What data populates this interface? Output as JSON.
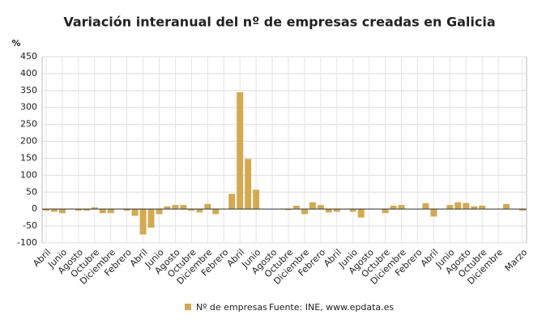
{
  "chart_data": {
    "type": "bar",
    "title": "Variación interanual del nº de empresas creadas en Galicia",
    "y_label": "%",
    "source": "Fuente: INE, www.epdata.es",
    "categories": [
      "Abril",
      null,
      "Junio",
      null,
      "Agosto",
      null,
      "Octubre",
      null,
      "Diciembre",
      null,
      "Febrero",
      null,
      "Abril",
      null,
      "Junio",
      null,
      "Agosto",
      null,
      "Octubre",
      null,
      "Diciembre",
      null,
      "Febrero",
      null,
      "Abril",
      null,
      "Junio",
      null,
      "Agosto",
      null,
      "Octubre",
      null,
      "Diciembre",
      null,
      "Febrero",
      null,
      "Abril",
      null,
      "Junio",
      null,
      "Agosto",
      null,
      "Octubre",
      null,
      "Diciembre",
      null,
      "Febrero",
      null,
      "Abril",
      null,
      "Junio",
      null,
      "Agosto",
      null,
      "Octubre",
      null,
      "Diciembre",
      null,
      null,
      "Marzo"
    ],
    "series": [
      {
        "name": "Nº de empresas",
        "color": "#d4a94f",
        "values": [
          -5,
          -8,
          -12,
          0,
          -5,
          -5,
          5,
          -12,
          -12,
          0,
          -5,
          -20,
          -75,
          -55,
          -15,
          8,
          12,
          12,
          -5,
          -10,
          15,
          -15,
          0,
          45,
          345,
          148,
          57,
          0,
          0,
          0,
          -3,
          10,
          -15,
          20,
          12,
          -10,
          -8,
          0,
          -8,
          -25,
          0,
          0,
          -12,
          10,
          12,
          0,
          0,
          17,
          -22,
          0,
          12,
          20,
          18,
          8,
          10,
          0,
          0,
          15,
          0,
          -5
        ]
      }
    ],
    "ylim": [
      -100,
      450
    ],
    "yticks": [
      -100,
      -50,
      0,
      50,
      100,
      150,
      200,
      250,
      300,
      350,
      400,
      450
    ],
    "grid": true
  }
}
